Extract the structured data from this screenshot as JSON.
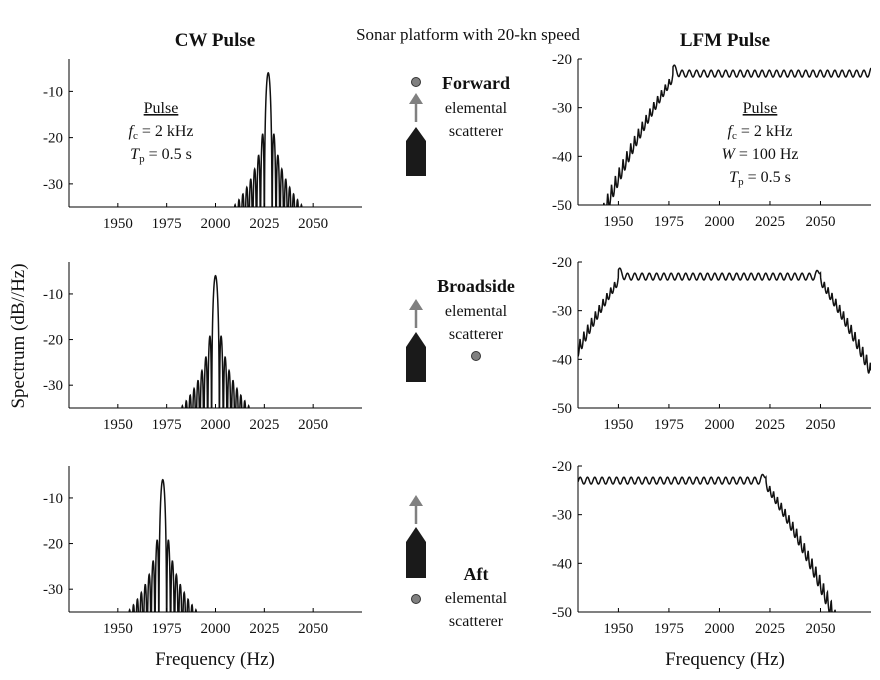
{
  "figure": {
    "suptitle": "Sonar platform with 20-kn speed",
    "ylabel": "Spectrum (dB//Hz)",
    "xlabel": "Frequency (Hz)"
  },
  "center": {
    "forward": {
      "title": "Forward",
      "line1": "elemental",
      "line2": "scatterer"
    },
    "broadside": {
      "title": "Broadside",
      "line1": "elemental",
      "line2": "scatterer"
    },
    "aft": {
      "title": "Aft",
      "line1": "elemental",
      "line2": "scatterer"
    }
  },
  "cw_annotation": {
    "heading": "Pulse",
    "fc_sym": "f",
    "fc_sub": "c",
    "fc_val": " = 2 kHz",
    "tp_sym": "T",
    "tp_sub": "p",
    "tp_val": " = 0.5 s"
  },
  "lfm_annotation": {
    "heading": "Pulse",
    "fc_sym": "f",
    "fc_sub": "c",
    "fc_val": " = 2 kHz",
    "w_sym": "W",
    "w_val": " = 100 Hz",
    "tp_sym": "T",
    "tp_sub": "p",
    "tp_val": " = 0.5 s"
  },
  "colors": {
    "curve": "#111111",
    "arrow": "#808080",
    "ship": "#1a1a1a",
    "scatterer": "#808080"
  },
  "chart_data": [
    {
      "id": "cw-forward",
      "type": "line",
      "title": "CW Pulse",
      "xlim": [
        1925,
        2075
      ],
      "ylim": [
        -35,
        -3
      ],
      "xticks": [
        1950,
        1975,
        2000,
        2025,
        2050
      ],
      "yticks": [
        -10,
        -20,
        -30
      ],
      "ytick_labels": [
        "-10",
        "-20",
        "-30"
      ],
      "peak_frequency": 2027,
      "peak_level": -6,
      "null_spacing": 2
    },
    {
      "id": "cw-broadside",
      "type": "line",
      "xlim": [
        1925,
        2075
      ],
      "ylim": [
        -35,
        -3
      ],
      "xticks": [
        1950,
        1975,
        2000,
        2025,
        2050
      ],
      "yticks": [
        -10,
        -20,
        -30
      ],
      "ytick_labels": [
        "-10",
        "-20",
        "-30"
      ],
      "peak_frequency": 2000,
      "peak_level": -6,
      "null_spacing": 2
    },
    {
      "id": "cw-aft",
      "type": "line",
      "xlim": [
        1925,
        2075
      ],
      "ylim": [
        -35,
        -3
      ],
      "xticks": [
        1950,
        1975,
        2000,
        2025,
        2050
      ],
      "yticks": [
        -10,
        -20,
        -30
      ],
      "ytick_labels": [
        "-10",
        "-20",
        "-30"
      ],
      "peak_frequency": 1973,
      "peak_level": -6,
      "null_spacing": 2
    },
    {
      "id": "lfm-forward",
      "type": "line",
      "title": "LFM Pulse",
      "xlim": [
        1930,
        2075
      ],
      "ylim": [
        -50,
        -20
      ],
      "xticks": [
        1950,
        1975,
        2000,
        2025,
        2050
      ],
      "yticks": [
        -20,
        -30,
        -40,
        -50
      ],
      "ytick_labels": [
        "-20",
        "-30",
        "-40",
        "-50"
      ],
      "band": [
        1977,
        2077
      ],
      "plateau_level": -23
    },
    {
      "id": "lfm-broadside",
      "type": "line",
      "xlim": [
        1930,
        2075
      ],
      "ylim": [
        -50,
        -20
      ],
      "xticks": [
        1950,
        1975,
        2000,
        2025,
        2050
      ],
      "yticks": [
        -20,
        -30,
        -40,
        -50
      ],
      "ytick_labels": [
        "-20",
        "-30",
        "-40",
        "-50"
      ],
      "band": [
        1950,
        2050
      ],
      "plateau_level": -23
    },
    {
      "id": "lfm-aft",
      "type": "line",
      "xlim": [
        1930,
        2075
      ],
      "ylim": [
        -50,
        -20
      ],
      "xticks": [
        1950,
        1975,
        2000,
        2025,
        2050
      ],
      "yticks": [
        -20,
        -30,
        -40,
        -50
      ],
      "ytick_labels": [
        "-20",
        "-30",
        "-40",
        "-50"
      ],
      "band": [
        1923,
        2023
      ],
      "plateau_level": -23
    }
  ]
}
